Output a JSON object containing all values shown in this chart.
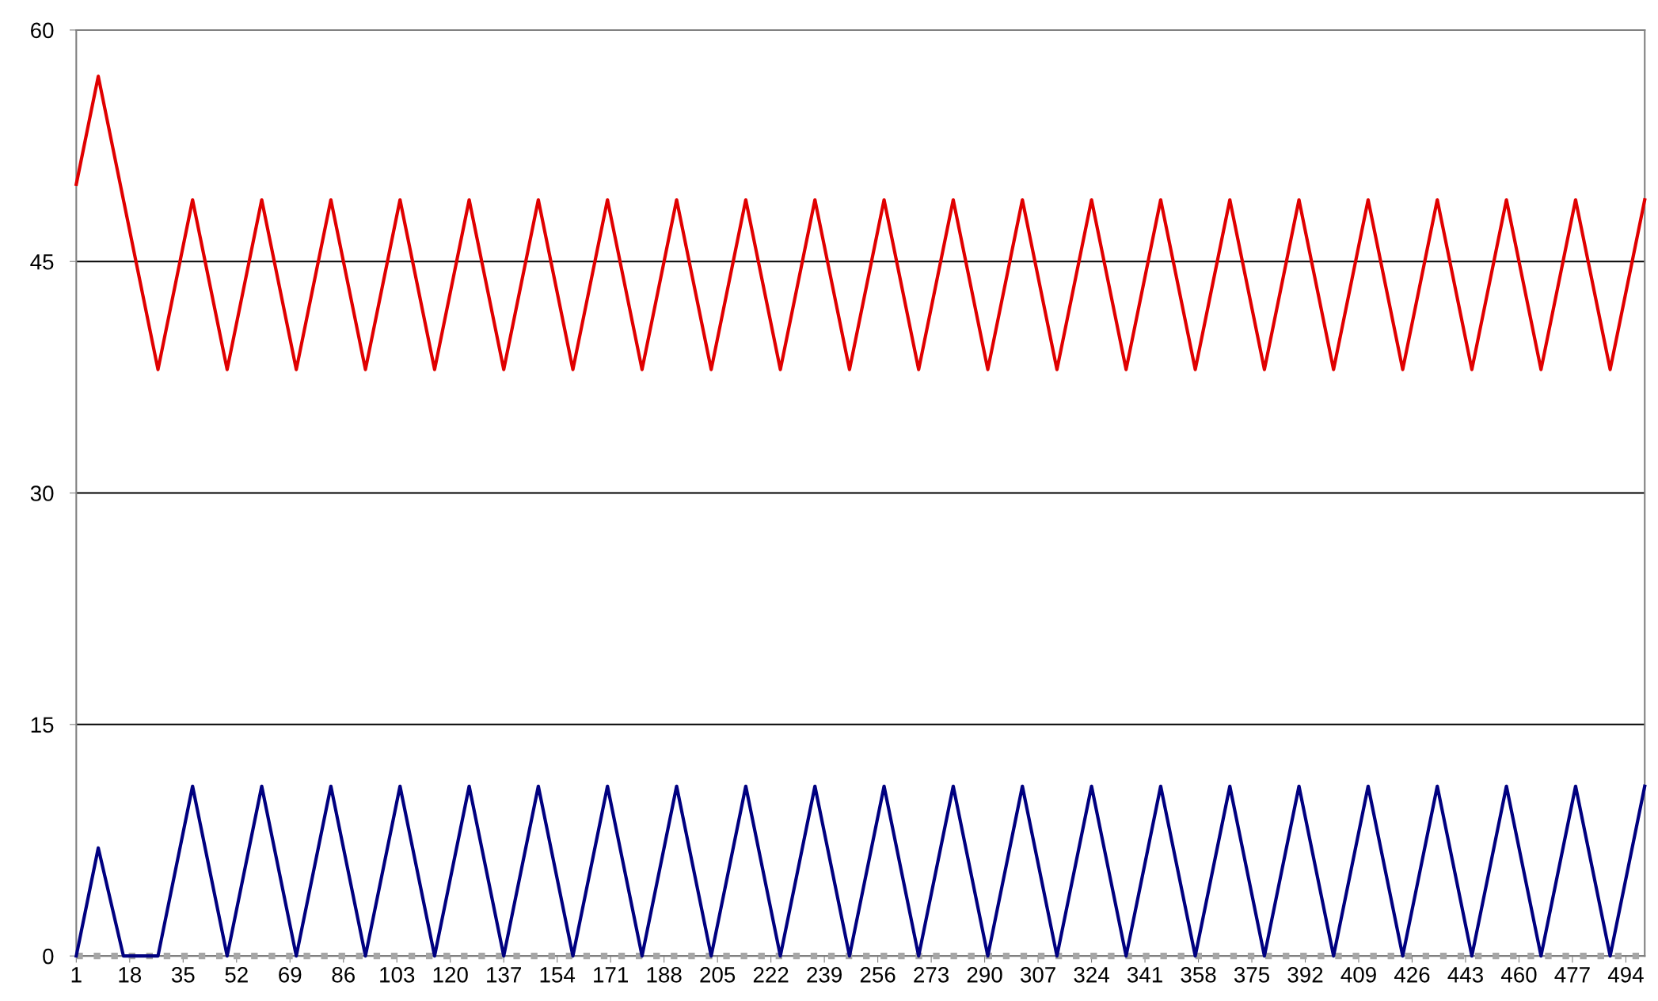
{
  "chart_data": {
    "type": "line",
    "xlim": [
      1,
      500
    ],
    "xticks": [
      1,
      18,
      35,
      52,
      69,
      86,
      103,
      120,
      137,
      154,
      171,
      188,
      205,
      222,
      239,
      256,
      273,
      290,
      307,
      324,
      341,
      358,
      375,
      392,
      409,
      426,
      443,
      460,
      477,
      494
    ],
    "ylim": [
      0,
      60
    ],
    "yticks": [
      0,
      15,
      30,
      45,
      60
    ],
    "grid": "y",
    "marker": "none",
    "series": [
      {
        "color": "#a6a6a6",
        "line_style": "dotted",
        "x": [
          1,
          500
        ],
        "values": [
          0,
          0
        ]
      },
      {
        "color": "#000080",
        "x": [
          1,
          8,
          16,
          27,
          38,
          49,
          60,
          71,
          82,
          93,
          104,
          115,
          126,
          137,
          148,
          159,
          170,
          181,
          192,
          203,
          214,
          225,
          236,
          247,
          258,
          269,
          280,
          291,
          302,
          313,
          324,
          335,
          346,
          357,
          368,
          379,
          390,
          401,
          412,
          423,
          434,
          445,
          456,
          467,
          478,
          489,
          500
        ],
        "values": [
          0,
          7,
          0,
          0,
          11,
          0,
          11,
          0,
          11,
          0,
          11,
          0,
          11,
          0,
          11,
          0,
          11,
          0,
          11,
          0,
          11,
          0,
          11,
          0,
          11,
          0,
          11,
          0,
          11,
          0,
          11,
          0,
          11,
          0,
          11,
          0,
          11,
          0,
          11,
          0,
          11,
          0,
          11,
          0,
          11,
          0,
          11
        ]
      },
      {
        "color": "#e00000",
        "x": [
          1,
          8,
          27,
          38,
          49,
          60,
          71,
          82,
          93,
          104,
          115,
          126,
          137,
          148,
          159,
          170,
          181,
          192,
          203,
          214,
          225,
          236,
          247,
          258,
          269,
          280,
          291,
          302,
          313,
          324,
          335,
          346,
          357,
          368,
          379,
          390,
          401,
          412,
          423,
          434,
          445,
          456,
          467,
          478,
          489,
          500
        ],
        "values": [
          50,
          57,
          38,
          49,
          38,
          49,
          38,
          49,
          38,
          49,
          38,
          49,
          38,
          49,
          38,
          49,
          38,
          49,
          38,
          49,
          38,
          49,
          38,
          49,
          38,
          49,
          38,
          49,
          38,
          49,
          38,
          49,
          38,
          49,
          38,
          49,
          38,
          49,
          38,
          49,
          38,
          49,
          38,
          49,
          38,
          49
        ]
      }
    ]
  }
}
